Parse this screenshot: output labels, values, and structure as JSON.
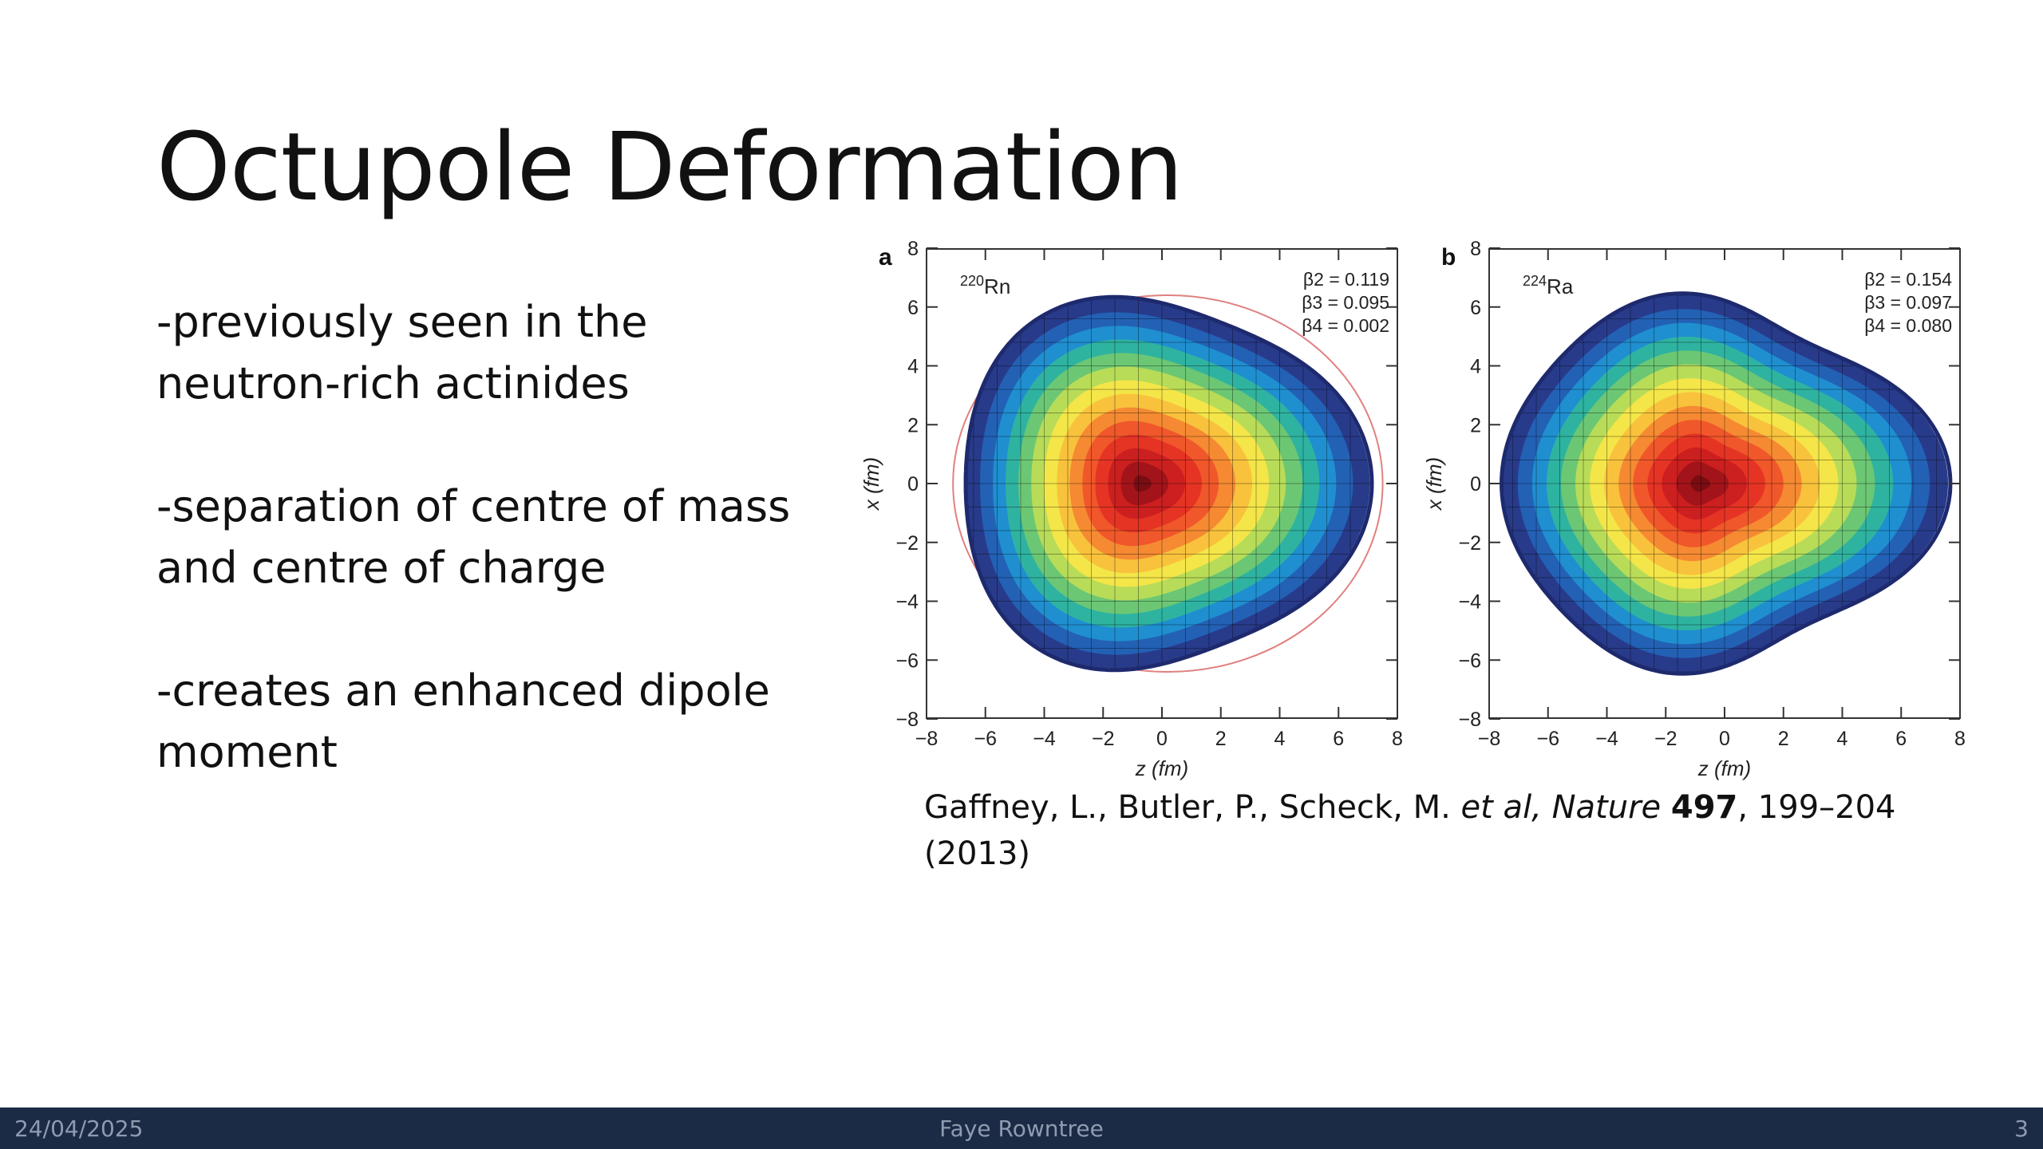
{
  "slide": {
    "title": "Octupole Deformation",
    "bullets": [
      {
        "line1": "-previously seen in the",
        "line2": "neutron-rich actinides"
      },
      {
        "line1": "-separation of centre of mass",
        "line2": "and centre of charge"
      },
      {
        "line1": "-creates an enhanced dipole",
        "line2": "moment"
      }
    ]
  },
  "figure": {
    "panels": [
      {
        "letter": "a",
        "mass": "220",
        "element": "Rn",
        "beta2": "β2 = 0.119",
        "beta3": "β3 = 0.095",
        "beta4": "β4 = 0.002"
      },
      {
        "letter": "b",
        "mass": "224",
        "element": "Ra",
        "beta2": "β2 = 0.154",
        "beta3": "β3 = 0.097",
        "beta4": "β4 = 0.080"
      }
    ],
    "xlabel": "z (fm)",
    "ylabel": "x (fm)",
    "ticks": [
      "−8",
      "−6",
      "−4",
      "−2",
      "0",
      "2",
      "4",
      "6",
      "8"
    ]
  },
  "citation": {
    "authors": "Gaffney, L., Butler, P., Scheck, M. ",
    "etal": "et al, Nature",
    "volume": "497",
    "pages": ", 199–204",
    "year": "(2013)"
  },
  "footer": {
    "date": "24/04/2025",
    "author": "Faye Rowntree",
    "page": "3"
  },
  "colors": {
    "footer_bg": "#1b2b45",
    "heat": [
      "#7a0d12",
      "#a3141a",
      "#cc1f1f",
      "#e53424",
      "#f0572a",
      "#f58a32",
      "#f9c23c",
      "#f4e648",
      "#b8dc58",
      "#6cc774",
      "#2fb3a1",
      "#1f8fd0",
      "#2361b5",
      "#283b8a"
    ]
  }
}
